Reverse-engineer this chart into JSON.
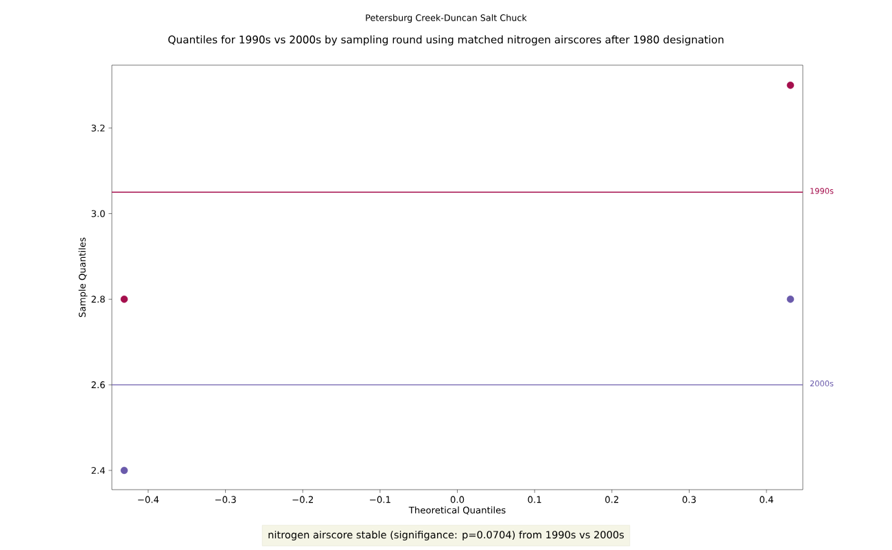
{
  "chart_data": {
    "type": "scatter",
    "subtitle": "Petersburg Creek-Duncan Salt Chuck",
    "title": "Quantiles for 1990s vs 2000s by sampling round using matched nitrogen airscores after 1980 designation",
    "xlabel": "Theoretical Quantiles",
    "ylabel": "Sample Quantiles",
    "series": [
      {
        "color": "#a50f4d",
        "values": [
          2.8,
          3.3
        ]
      },
      {
        "color": "#6a5aab",
        "values": [
          2.4,
          2.8
        ]
      }
    ],
    "x": [
      -0.431,
      0.431
    ],
    "xlim": [
      -0.447,
      0.447
    ],
    "ylim": [
      2.355,
      3.347
    ],
    "xticks": [
      {
        "value": -0.4,
        "label": "−0.4"
      },
      {
        "value": -0.3,
        "label": "−0.3"
      },
      {
        "value": -0.2,
        "label": "−0.2"
      },
      {
        "value": -0.1,
        "label": "−0.1"
      },
      {
        "value": 0.0,
        "label": "0.0"
      },
      {
        "value": 0.1,
        "label": "0.1"
      },
      {
        "value": 0.2,
        "label": "0.2"
      },
      {
        "value": 0.3,
        "label": "0.3"
      },
      {
        "value": 0.4,
        "label": "0.4"
      }
    ],
    "yticks": [
      {
        "value": 2.4,
        "label": "2.4"
      },
      {
        "value": 2.6,
        "label": "2.6"
      },
      {
        "value": 2.8,
        "label": "2.8"
      },
      {
        "value": 3.0,
        "label": "3.0"
      },
      {
        "value": 3.2,
        "label": "3.2"
      }
    ],
    "ref_lines": [
      {
        "axis": "y",
        "value": 3.05,
        "label": "1990s",
        "color": "#a50f4d"
      },
      {
        "axis": "y",
        "value": 2.6,
        "label": "2000s",
        "color": "#6a5aab"
      }
    ],
    "annotations": [
      "nitrogen airscore stable (signifigance: p=0.0704) from 1990s vs 2000s"
    ],
    "marker": "circle",
    "grid": false
  }
}
